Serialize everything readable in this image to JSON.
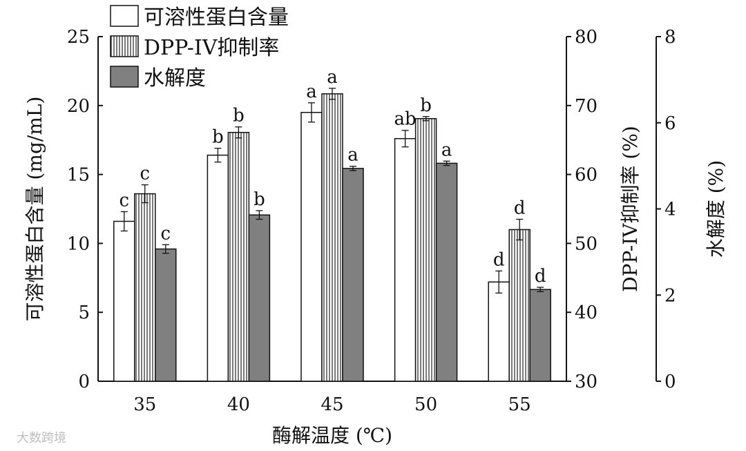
{
  "watermark": "大数跨境",
  "chart_data": {
    "type": "bar",
    "categories": [
      "35",
      "40",
      "45",
      "50",
      "55"
    ],
    "xlabel": "酶解温度 (℃)",
    "axes": {
      "left": {
        "label": "可溶性蛋白含量 (mg/mL)",
        "range": [
          0,
          25
        ],
        "ticks": [
          "0",
          "5",
          "10",
          "15",
          "20",
          "25"
        ]
      },
      "right1": {
        "label": "DPP-IV抑制率 (%)",
        "range": [
          30,
          80
        ],
        "ticks": [
          "30",
          "40",
          "50",
          "60",
          "70",
          "80"
        ]
      },
      "right2": {
        "label": "水解度 (%)",
        "range": [
          0,
          8
        ],
        "ticks": [
          "0",
          "2",
          "4",
          "6",
          "8"
        ]
      }
    },
    "series": [
      {
        "name": "可溶性蛋白含量",
        "axis": "left",
        "style": "white",
        "values": [
          11.6,
          16.4,
          19.5,
          17.6,
          7.2
        ],
        "errors": [
          0.7,
          0.5,
          0.7,
          0.6,
          0.8
        ],
        "labels": [
          "c",
          "b",
          "a",
          "ab",
          "d"
        ]
      },
      {
        "name": "DPP-IV抑制率",
        "axis": "right1",
        "style": "hatched",
        "values": [
          57.2,
          66.1,
          71.7,
          68.1,
          52.0
        ],
        "errors": [
          1.3,
          0.8,
          0.8,
          0.3,
          1.5
        ],
        "labels": [
          "c",
          "b",
          "a",
          "b",
          "d"
        ]
      },
      {
        "name": "水解度",
        "axis": "right2",
        "style": "gray",
        "values": [
          3.07,
          3.86,
          4.94,
          5.06,
          2.13
        ],
        "errors": [
          0.1,
          0.1,
          0.05,
          0.05,
          0.05
        ],
        "labels": [
          "c",
          "b",
          "a",
          "a",
          "d"
        ]
      }
    ],
    "legend": "top-left"
  }
}
